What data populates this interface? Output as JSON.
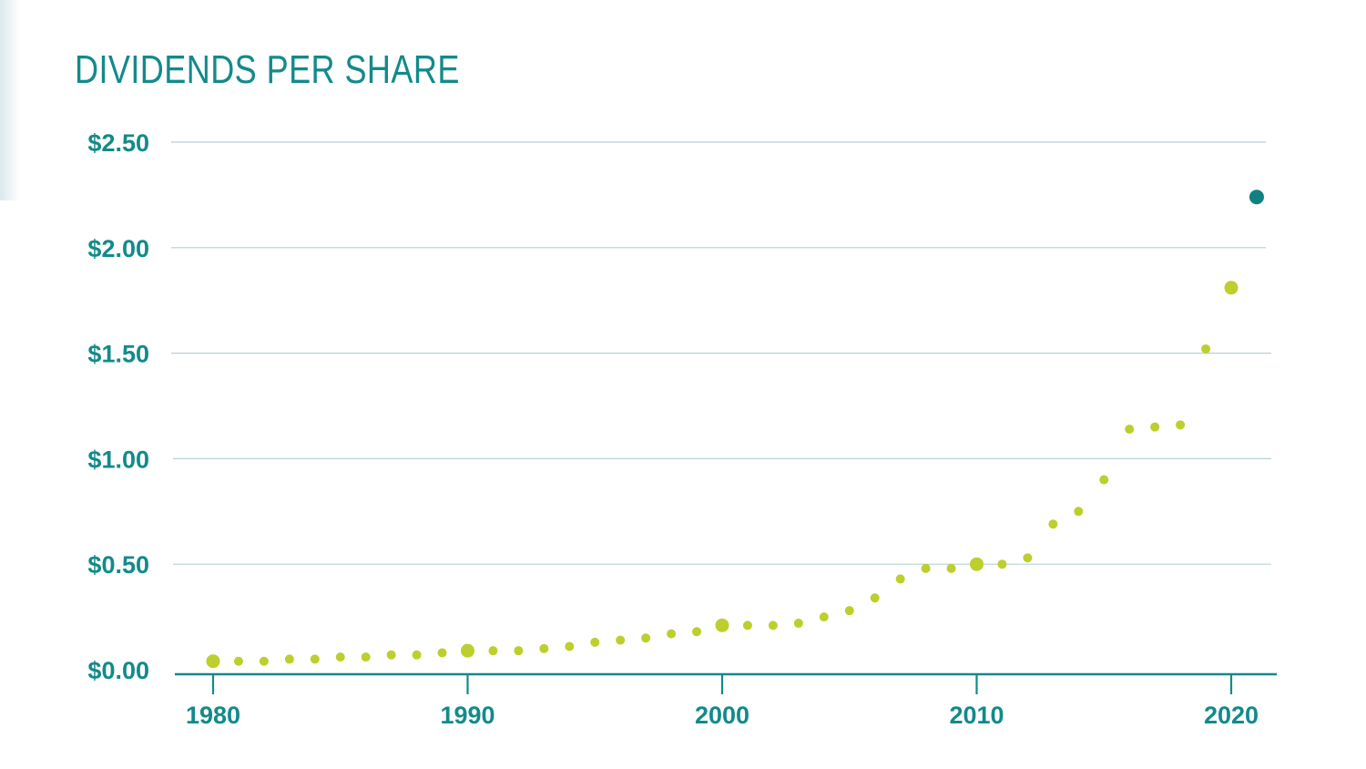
{
  "chart_data": {
    "type": "scatter",
    "title": "DIVIDENDS PER SHARE",
    "xlabel": "",
    "ylabel": "",
    "x_ticks": [
      "1980",
      "1990",
      "2000",
      "2010",
      "2020"
    ],
    "y_ticks": [
      "$0.00",
      "$0.50",
      "$1.00",
      "$1.50",
      "$2.00",
      "$2.50"
    ],
    "xlim": [
      1980,
      2021
    ],
    "ylim": [
      0,
      2.5
    ],
    "grid": "horizontal",
    "colors": {
      "points": "#bccf2c",
      "highlight": "#0f8184",
      "axis": "#138a8a",
      "grid": "#b9cfd6"
    },
    "series": [
      {
        "x": [
          1980,
          1981,
          1982,
          1983,
          1984,
          1985,
          1986,
          1987,
          1988,
          1989,
          1990,
          1991,
          1992,
          1993,
          1994,
          1995,
          1996,
          1997,
          1998,
          1999,
          2000,
          2001,
          2002,
          2003,
          2004,
          2005,
          2006,
          2007,
          2008,
          2009,
          2010,
          2011,
          2012,
          2013,
          2014,
          2015,
          2016,
          2017,
          2018,
          2019,
          2020,
          2021
        ],
        "values": [
          0.04,
          0.04,
          0.04,
          0.05,
          0.05,
          0.06,
          0.06,
          0.07,
          0.07,
          0.08,
          0.09,
          0.09,
          0.09,
          0.1,
          0.11,
          0.13,
          0.14,
          0.15,
          0.17,
          0.18,
          0.21,
          0.21,
          0.21,
          0.22,
          0.25,
          0.28,
          0.34,
          0.43,
          0.48,
          0.48,
          0.5,
          0.5,
          0.53,
          0.69,
          0.75,
          0.9,
          1.14,
          1.15,
          1.16,
          1.52,
          1.81,
          2.24
        ]
      }
    ]
  }
}
